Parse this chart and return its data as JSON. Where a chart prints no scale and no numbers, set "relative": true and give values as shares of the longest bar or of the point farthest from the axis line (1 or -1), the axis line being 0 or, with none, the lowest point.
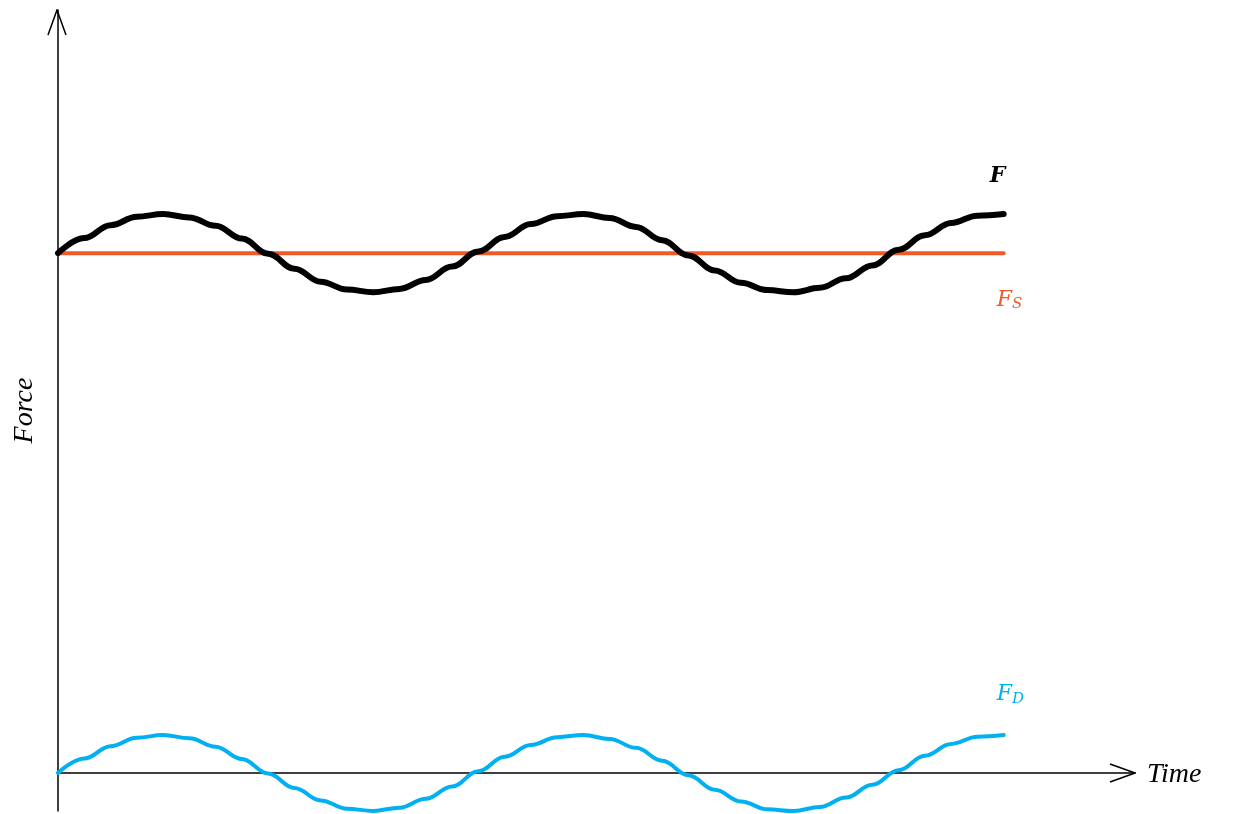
{
  "chart_data": {
    "type": "line",
    "relative": true,
    "xlabel": "Time",
    "ylabel": "Force",
    "legend": false,
    "grid": false,
    "categories": [
      null,
      null,
      null,
      null,
      null,
      null,
      null,
      null,
      null,
      null,
      null,
      null,
      null,
      null,
      null,
      null,
      null,
      null,
      null,
      null,
      null,
      null,
      null,
      null,
      null,
      null,
      null,
      null,
      null,
      null,
      null,
      null,
      null,
      null,
      null,
      null,
      null
    ],
    "series": [
      {
        "name": "F",
        "color": "#000000",
        "values": [
          0.93,
          0.957,
          0.98,
          0.995,
          1.0,
          0.994,
          0.979,
          0.956,
          0.929,
          0.902,
          0.879,
          0.865,
          0.86,
          0.866,
          0.882,
          0.906,
          0.933,
          0.959,
          0.982,
          0.996,
          1.0,
          0.993,
          0.977,
          0.953,
          0.926,
          0.899,
          0.877,
          0.864,
          0.86,
          0.868,
          0.885,
          0.908,
          0.936,
          0.962,
          0.984,
          0.997,
          1.0
        ]
      },
      {
        "name": "F$_{S}$",
        "color": "#f05a28",
        "values": [
          0.93,
          0.93,
          0.93,
          0.93,
          0.93,
          0.93,
          0.93,
          0.93,
          0.93,
          0.93,
          0.93,
          0.93,
          0.93,
          0.93,
          0.93,
          0.93,
          0.93,
          0.93,
          0.93,
          0.93,
          0.93,
          0.93,
          0.93,
          0.93,
          0.93,
          0.93,
          0.93,
          0.93,
          0.93,
          0.93,
          0.93,
          0.93,
          0.93,
          0.93,
          0.93,
          0.93,
          0.93
        ]
      },
      {
        "name": "F$_{D}$",
        "color": "#00b0f0",
        "values": [
          0,
          0.026,
          0.048,
          0.063,
          0.068,
          0.062,
          0.047,
          0.025,
          -0.001,
          -0.027,
          -0.049,
          -0.064,
          -0.068,
          -0.062,
          -0.046,
          -0.024,
          0.003,
          0.029,
          0.05,
          0.064,
          0.068,
          0.061,
          0.045,
          0.022,
          -0.004,
          -0.03,
          -0.051,
          -0.065,
          -0.068,
          -0.061,
          -0.044,
          -0.021,
          0.005,
          0.031,
          0.052,
          0.065,
          0.068
        ]
      }
    ]
  }
}
